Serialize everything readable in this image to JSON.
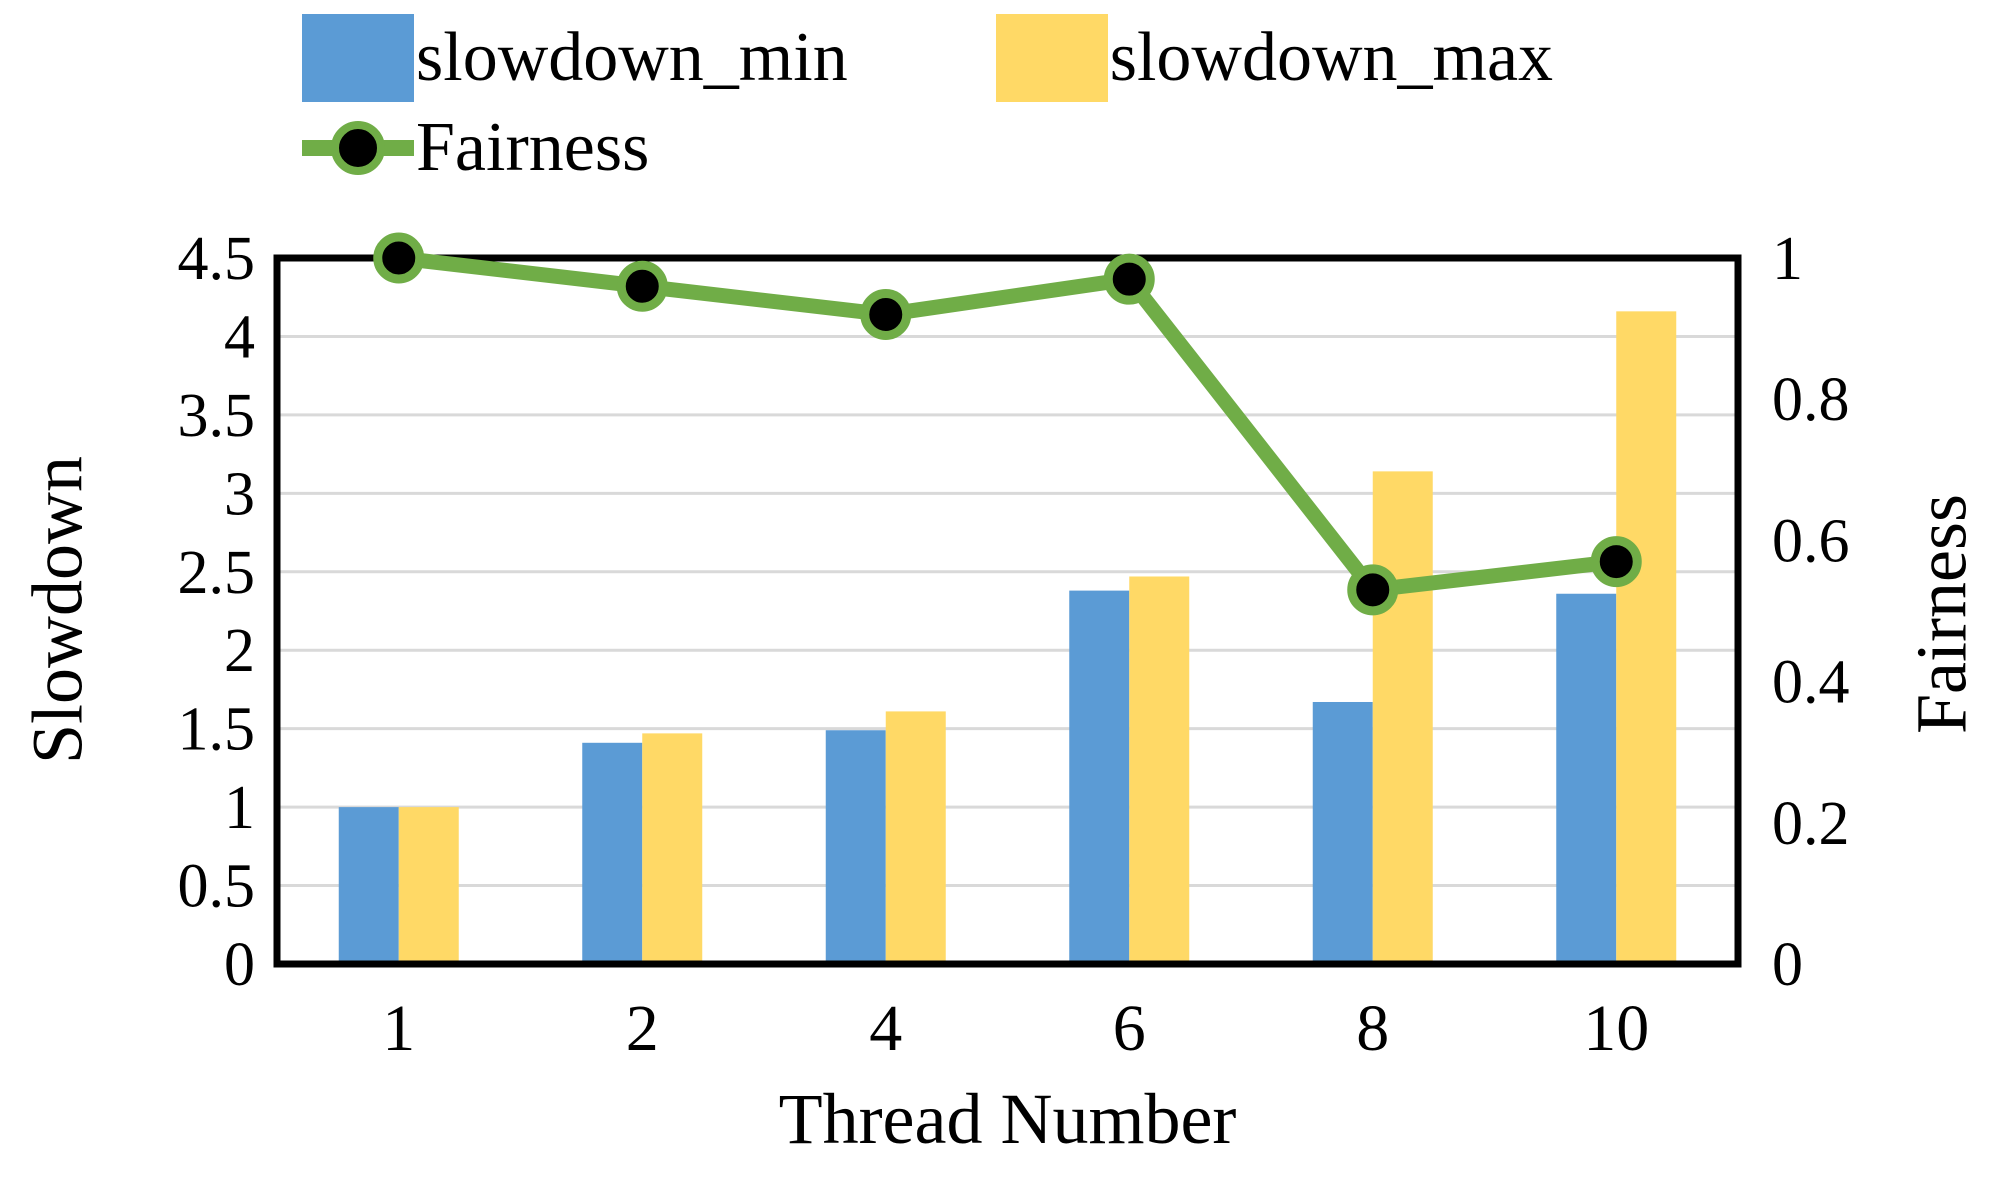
{
  "chart_data": {
    "type": "combo-bar-line",
    "title": "",
    "xlabel": "Thread Number",
    "categories": [
      "1",
      "2",
      "4",
      "6",
      "8",
      "10"
    ],
    "left_axis": {
      "label": "Slowdown",
      "min": 0,
      "max": 4.5,
      "tick_labels": [
        "4.5",
        "4",
        "3.5",
        "3",
        "2.5",
        "2",
        "1.5",
        "1",
        "0.5",
        "0"
      ],
      "tick_values": [
        4.5,
        4,
        3.5,
        3,
        2.5,
        2,
        1.5,
        1,
        0.5,
        0
      ]
    },
    "right_axis": {
      "label": "Fairness",
      "min": 0,
      "max": 1,
      "tick_labels": [
        "1",
        "0.8",
        "0.6",
        "0.4",
        "0.2",
        "0"
      ],
      "tick_values": [
        1,
        0.8,
        0.6,
        0.4,
        0.2,
        0
      ]
    },
    "series": [
      {
        "name": "slowdown_min",
        "type": "bar",
        "axis": "left",
        "color": "#5B9BD5",
        "values": [
          1.0,
          1.41,
          1.49,
          2.38,
          1.67,
          2.36
        ]
      },
      {
        "name": "slowdown_max",
        "type": "bar",
        "axis": "left",
        "color": "#FFD966",
        "values": [
          1.0,
          1.47,
          1.61,
          2.47,
          3.14,
          4.16
        ]
      },
      {
        "name": "Fairness",
        "type": "line",
        "axis": "right",
        "color": "#70AD47",
        "marker_fill": "#000000",
        "values": [
          1.0,
          0.96,
          0.92,
          0.97,
          0.53,
          0.57
        ]
      }
    ],
    "legend_position": "top-left",
    "grid": true,
    "gridline_color": "#D9D9D9",
    "frame_color": "#000000",
    "tick_font_color": "#000000"
  }
}
